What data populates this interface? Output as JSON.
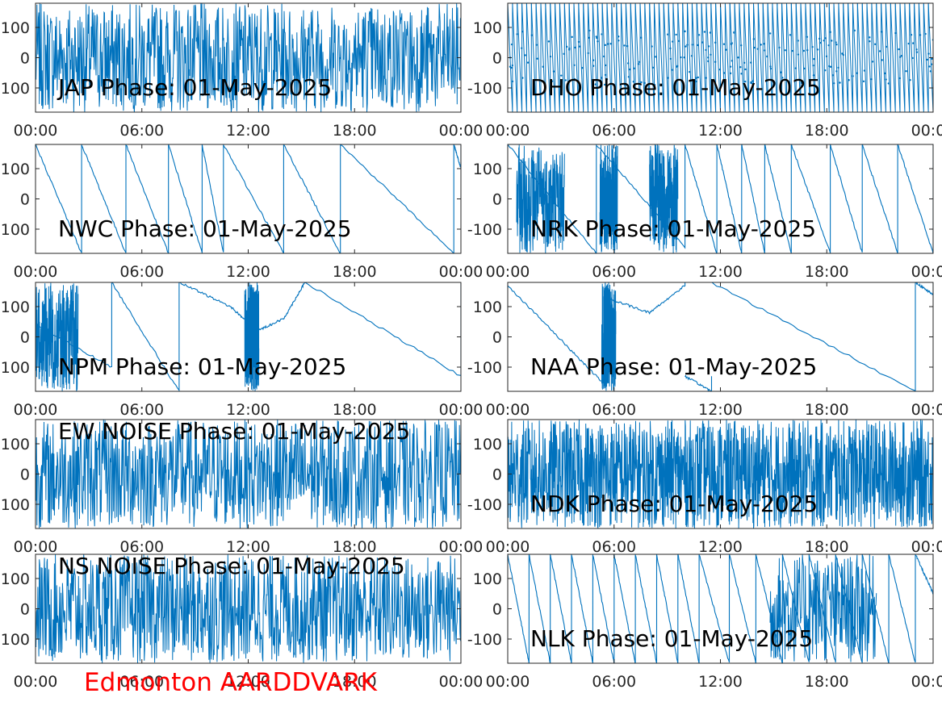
{
  "footer": {
    "text": "Edmonton AARDDVARK",
    "color": "#ff0000"
  },
  "style": {
    "line_color": "#0072bd",
    "axis_color": "#262626",
    "text_color": "#000000"
  },
  "chart_data": [
    {
      "type": "line",
      "title": "JAP Phase: 01-May-2025",
      "station": "JAP",
      "pattern": "noise",
      "ylim": [
        -180,
        180
      ],
      "yticks": [
        100,
        0,
        -100
      ],
      "ytick_labels": [
        "100",
        "0",
        "-100"
      ],
      "xticks": [
        "00:00",
        "06:00",
        "12:00",
        "18:00",
        "00:00"
      ],
      "title_pos": "bottom"
    },
    {
      "type": "line",
      "title": "DHO Phase: 01-May-2025",
      "station": "DHO",
      "pattern": "dense-fast-wrap",
      "ylim": [
        -180,
        180
      ],
      "yticks": [
        100,
        0,
        -100
      ],
      "ytick_labels": [
        "100",
        "0",
        "-100"
      ],
      "xticks": [
        "00:00",
        "06:00",
        "12:00",
        "18:00",
        "00:00"
      ],
      "title_pos": "bottom"
    },
    {
      "type": "line",
      "title": "NWC Phase: 01-May-2025",
      "station": "NWC",
      "pattern": "wrapped-drift",
      "ylim": [
        -180,
        180
      ],
      "yticks": [
        100,
        0,
        -100
      ],
      "ytick_labels": [
        "100",
        "0",
        "-100"
      ],
      "xticks": [
        "00:00",
        "06:00",
        "12:00",
        "18:00",
        "00:00"
      ],
      "title_pos": "bottom",
      "series": [
        {
          "x": [
            0,
            2.6
          ],
          "y": [
            180,
            -180
          ]
        },
        {
          "x": [
            2.6,
            5.1
          ],
          "y": [
            180,
            -180
          ]
        },
        {
          "x": [
            5.1,
            7.5
          ],
          "y": [
            180,
            -180
          ]
        },
        {
          "x": [
            7.5,
            9.4
          ],
          "y": [
            180,
            -180
          ]
        },
        {
          "x": [
            9.4,
            10.6
          ],
          "y": [
            180,
            -180
          ]
        },
        {
          "x": [
            10.6,
            14.0
          ],
          "y": [
            180,
            -180
          ]
        },
        {
          "x": [
            14.0,
            17.2
          ],
          "y": [
            180,
            -180
          ]
        },
        {
          "x": [
            17.2,
            23.6
          ],
          "y": [
            180,
            -180
          ]
        },
        {
          "x": [
            23.6,
            24
          ],
          "y": [
            180,
            100
          ]
        }
      ]
    },
    {
      "type": "line",
      "title": "NRK Phase: 01-May-2025",
      "station": "NRK",
      "pattern": "wrapped-drift",
      "ylim": [
        -180,
        180
      ],
      "yticks": [
        100,
        0,
        -100
      ],
      "ytick_labels": [
        "100",
        "0",
        "-100"
      ],
      "xticks": [
        "00:00",
        "06:00",
        "12:00",
        "18:00",
        "00:00"
      ],
      "title_pos": "bottom",
      "series": [
        {
          "x": [
            0,
            5.0
          ],
          "y": [
            180,
            -180
          ]
        },
        {
          "x": [
            5.0,
            10.0
          ],
          "y": [
            180,
            -160
          ]
        },
        {
          "x": [
            10.0,
            11.8
          ],
          "y": [
            180,
            -180
          ]
        },
        {
          "x": [
            11.8,
            13.2
          ],
          "y": [
            180,
            -180
          ]
        },
        {
          "x": [
            13.2,
            14.5
          ],
          "y": [
            180,
            -180
          ]
        },
        {
          "x": [
            14.5,
            16.0
          ],
          "y": [
            180,
            -180
          ]
        },
        {
          "x": [
            16.0,
            18.2
          ],
          "y": [
            180,
            -180
          ]
        },
        {
          "x": [
            18.2,
            20.0
          ],
          "y": [
            180,
            -180
          ]
        },
        {
          "x": [
            20.0,
            22.0
          ],
          "y": [
            180,
            -180
          ]
        },
        {
          "x": [
            22.0,
            24.0
          ],
          "y": [
            180,
            -180
          ]
        }
      ],
      "noise_x": [
        [
          0.5,
          3.2
        ],
        [
          5.2,
          6.2
        ],
        [
          8.0,
          9.6
        ]
      ]
    },
    {
      "type": "line",
      "title": "NPM Phase: 01-May-2025",
      "station": "NPM",
      "pattern": "wrapped-drift",
      "ylim": [
        -180,
        180
      ],
      "yticks": [
        100,
        0,
        -100
      ],
      "ytick_labels": [
        "100",
        "0",
        "-100"
      ],
      "xticks": [
        "00:00",
        "06:00",
        "12:00",
        "18:00",
        "00:00"
      ],
      "title_pos": "bottom",
      "series": [
        {
          "x": [
            0,
            4.3
          ],
          "y": [
            40,
            -100
          ]
        },
        {
          "x": [
            4.3,
            8.1
          ],
          "y": [
            180,
            -180
          ]
        },
        {
          "x": [
            8.1,
            11.0,
            12.5,
            14.0,
            15.2,
            24.0
          ],
          "y": [
            180,
            100,
            20,
            60,
            180,
            -130
          ]
        }
      ],
      "noise_x": [
        [
          0,
          2.4
        ],
        [
          11.8,
          12.6
        ]
      ]
    },
    {
      "type": "line",
      "title": "NAA Phase: 01-May-2025",
      "station": "NAA",
      "pattern": "wrapped-drift",
      "ylim": [
        -180,
        180
      ],
      "yticks": [
        100,
        0,
        -100
      ],
      "ytick_labels": [
        "100",
        "0",
        "-100"
      ],
      "xticks": [
        "00:00",
        "06:00",
        "12:00",
        "18:00",
        "00:00"
      ],
      "title_pos": "bottom",
      "series": [
        {
          "x": [
            0,
            3.5,
            5.5
          ],
          "y": [
            170,
            -40,
            -160
          ]
        },
        {
          "x": [
            5.5,
            8.0,
            10.0
          ],
          "y": [
            130,
            80,
            170
          ]
        },
        {
          "x": [
            10.0,
            11.5
          ],
          "y": [
            -130,
            -180
          ]
        },
        {
          "x": [
            11.5,
            23.0
          ],
          "y": [
            180,
            -180
          ]
        },
        {
          "x": [
            23.0,
            24.0
          ],
          "y": [
            180,
            140
          ]
        }
      ],
      "noise_x": [
        [
          5.3,
          6.1
        ]
      ]
    },
    {
      "type": "line",
      "title": "EW NOISE Phase: 01-May-2025",
      "station": "EW NOISE",
      "pattern": "noise",
      "ylim": [
        -180,
        180
      ],
      "yticks": [
        100,
        0,
        -100
      ],
      "ytick_labels": [
        "100",
        "0",
        "-100"
      ],
      "xticks": [
        "00:00",
        "06:00",
        "12:00",
        "18:00",
        "00:00"
      ],
      "title_pos": "top"
    },
    {
      "type": "line",
      "title": "NDK Phase: 01-May-2025",
      "station": "NDK",
      "pattern": "noise-dense",
      "ylim": [
        -180,
        180
      ],
      "yticks": [
        100,
        0,
        -100
      ],
      "ytick_labels": [
        "100",
        "0",
        "-100"
      ],
      "xticks": [
        "00:00",
        "06:00",
        "12:00",
        "18:00",
        "00:00"
      ],
      "title_pos": "bottom"
    },
    {
      "type": "line",
      "title": "NS NOISE Phase: 01-May-2025",
      "station": "NS NOISE",
      "pattern": "noise",
      "ylim": [
        -180,
        180
      ],
      "yticks": [
        100,
        0,
        -100
      ],
      "ytick_labels": [
        "100",
        "0",
        "-100"
      ],
      "xticks": [
        "00:00",
        "06:00",
        "12:00",
        "18:00",
        "00:00"
      ],
      "title_pos": "top"
    },
    {
      "type": "line",
      "title": "NLK Phase: 01-May-2025",
      "station": "NLK",
      "pattern": "wrapped-drift",
      "ylim": [
        -180,
        180
      ],
      "yticks": [
        100,
        0,
        -100
      ],
      "ytick_labels": [
        "100",
        "0",
        "-100"
      ],
      "xticks": [
        "00:00",
        "06:00",
        "12:00",
        "18:00",
        "00:00"
      ],
      "title_pos": "bottom",
      "series": [
        {
          "x": [
            0,
            1.2
          ],
          "y": [
            180,
            -180
          ]
        },
        {
          "x": [
            1.2,
            2.4
          ],
          "y": [
            180,
            -180
          ]
        },
        {
          "x": [
            2.4,
            3.6
          ],
          "y": [
            180,
            -180
          ]
        },
        {
          "x": [
            3.6,
            4.8
          ],
          "y": [
            180,
            -180
          ]
        },
        {
          "x": [
            4.8,
            6.0
          ],
          "y": [
            180,
            -180
          ]
        },
        {
          "x": [
            6.0,
            7.2
          ],
          "y": [
            180,
            -180
          ]
        },
        {
          "x": [
            7.2,
            8.4
          ],
          "y": [
            180,
            -180
          ]
        },
        {
          "x": [
            8.4,
            9.6
          ],
          "y": [
            180,
            -180
          ]
        },
        {
          "x": [
            9.6,
            10.8
          ],
          "y": [
            180,
            -180
          ]
        },
        {
          "x": [
            10.8,
            12.5
          ],
          "y": [
            180,
            -180
          ]
        },
        {
          "x": [
            12.5,
            14.0
          ],
          "y": [
            180,
            -180
          ]
        },
        {
          "x": [
            14.0,
            15.5
          ],
          "y": [
            180,
            -180
          ]
        },
        {
          "x": [
            15.5,
            17.0
          ],
          "y": [
            180,
            -180
          ]
        },
        {
          "x": [
            17.0,
            18.5
          ],
          "y": [
            180,
            -180
          ]
        },
        {
          "x": [
            18.5,
            20.0
          ],
          "y": [
            180,
            -180
          ]
        },
        {
          "x": [
            20.0,
            21.5
          ],
          "y": [
            180,
            -180
          ]
        },
        {
          "x": [
            21.5,
            23.0
          ],
          "y": [
            180,
            -180
          ]
        },
        {
          "x": [
            23.0,
            24.0
          ],
          "y": [
            180,
            50
          ]
        }
      ],
      "noise_x": [
        [
          14.8,
          20.8
        ]
      ]
    }
  ]
}
